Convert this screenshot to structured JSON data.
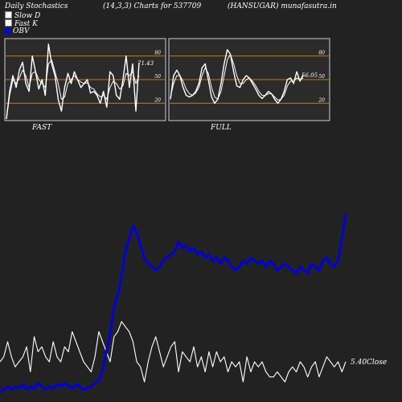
{
  "header": {
    "left": "Daily Stochastics",
    "center": "(14,3,3) Charts for 537709",
    "right": "(HANSUGAR) munafasutra.in"
  },
  "legend": {
    "items": [
      {
        "label": "Slow  D",
        "color": "#ffffff"
      },
      {
        "label": "Fast K",
        "color": "#ffffff"
      },
      {
        "label": "OBV",
        "color": "#0000ff"
      }
    ]
  },
  "colors": {
    "background": "#222222",
    "panel": "#2b2b2b",
    "panel_border": "#cccccc",
    "ref_line": "#cc7a00",
    "stoch_line": "#ffffff",
    "price_line": "#ffffff",
    "obv_line": "#0000dd"
  },
  "chart_data": [
    {
      "type": "line",
      "panel": "fast",
      "label": "FAST",
      "ylim": [
        0,
        100
      ],
      "ticks": [
        80,
        50,
        20
      ],
      "reference_lines": [
        80,
        50,
        20
      ],
      "last_value_label": "71.43",
      "series": [
        {
          "name": "Fast K",
          "values": [
            0,
            35,
            55,
            40,
            62,
            72,
            45,
            35,
            80,
            60,
            38,
            50,
            30,
            95,
            70,
            55,
            25,
            10,
            40,
            58,
            45,
            60,
            50,
            40,
            45,
            50,
            33,
            35,
            30,
            20,
            35,
            15,
            60,
            55,
            30,
            25,
            50,
            80,
            40,
            70,
            10,
            71.43
          ]
        },
        {
          "name": "Slow D",
          "values": [
            0,
            30,
            50,
            45,
            52,
            62,
            55,
            40,
            58,
            60,
            50,
            45,
            40,
            70,
            75,
            60,
            45,
            25,
            28,
            45,
            50,
            55,
            50,
            47,
            45,
            46,
            40,
            38,
            32,
            28,
            30,
            25,
            40,
            48,
            45,
            38,
            42,
            58,
            55,
            60,
            45,
            55
          ]
        }
      ]
    },
    {
      "type": "line",
      "panel": "full",
      "label": "FULL",
      "ylim": [
        0,
        100
      ],
      "ticks": [
        80,
        50,
        20
      ],
      "reference_lines": [
        80,
        50,
        20
      ],
      "last_value_label": "56.05",
      "series": [
        {
          "name": "Fast K",
          "values": [
            25,
            55,
            62,
            55,
            40,
            30,
            28,
            30,
            35,
            45,
            65,
            70,
            50,
            28,
            20,
            25,
            45,
            70,
            88,
            82,
            60,
            42,
            40,
            50,
            55,
            52,
            45,
            38,
            30,
            26,
            30,
            35,
            32,
            25,
            20,
            25,
            35,
            50,
            52,
            45,
            60,
            48,
            56.05
          ]
        },
        {
          "name": "Slow D",
          "values": [
            28,
            45,
            55,
            55,
            48,
            38,
            32,
            30,
            33,
            40,
            55,
            65,
            58,
            40,
            28,
            25,
            35,
            55,
            75,
            82,
            70,
            55,
            45,
            45,
            50,
            52,
            48,
            42,
            35,
            30,
            30,
            32,
            32,
            28,
            24,
            25,
            30,
            42,
            48,
            48,
            52,
            50,
            52
          ]
        }
      ]
    },
    {
      "type": "line",
      "panel": "price_obv",
      "last_value_label": "5.40Close",
      "series": [
        {
          "name": "Close",
          "values": [
            40,
            45,
            60,
            45,
            35,
            40,
            45,
            55,
            30,
            65,
            50,
            55,
            45,
            40,
            60,
            45,
            40,
            55,
            50,
            70,
            60,
            50,
            40,
            35,
            30,
            45,
            70,
            60,
            50,
            40,
            65,
            70,
            80,
            75,
            70,
            60,
            40,
            35,
            20,
            40,
            55,
            65,
            50,
            35,
            45,
            55,
            60,
            30,
            50,
            45,
            40,
            55,
            35,
            45,
            30,
            50,
            35,
            50,
            40,
            45,
            30,
            40,
            35,
            40,
            20,
            45,
            30,
            40,
            35,
            40,
            30,
            25,
            25,
            30,
            25,
            20,
            30,
            35,
            30,
            40,
            35,
            25,
            35,
            40,
            25,
            35,
            45,
            40,
            35,
            40,
            30,
            40
          ]
        },
        {
          "name": "OBV",
          "values": [
            15,
            20,
            25,
            20,
            25,
            22,
            28,
            20,
            25,
            22,
            30,
            25,
            20,
            25,
            22,
            28,
            25,
            30,
            25,
            22,
            28,
            25,
            20,
            22,
            25,
            30,
            35,
            50,
            80,
            110,
            150,
            170,
            200,
            240,
            260,
            280,
            270,
            250,
            230,
            220,
            215,
            210,
            215,
            225,
            230,
            235,
            240,
            255,
            245,
            250,
            240,
            245,
            235,
            240,
            230,
            235,
            225,
            230,
            220,
            230,
            225,
            215,
            210,
            215,
            225,
            220,
            230,
            225,
            220,
            225,
            215,
            225,
            220,
            210,
            215,
            220,
            215,
            210,
            205,
            215,
            210,
            205,
            220,
            215,
            210,
            225,
            230,
            220,
            215,
            225,
            260,
            300
          ]
        }
      ]
    }
  ]
}
